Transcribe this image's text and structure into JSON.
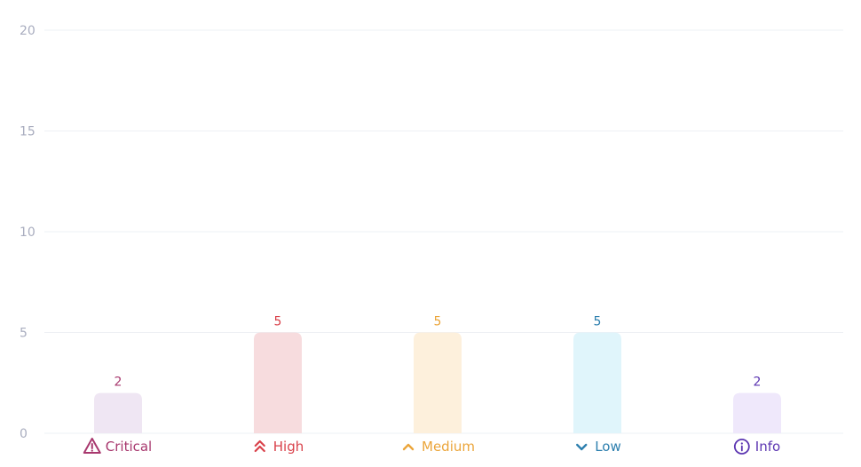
{
  "chart_data": {
    "type": "bar",
    "categories": [
      "Critical",
      "High",
      "Medium",
      "Low",
      "Info"
    ],
    "values": [
      2,
      5,
      5,
      5,
      2
    ],
    "category_icons": [
      "warning-triangle-icon",
      "double-chevron-up-icon",
      "chevron-up-icon",
      "chevron-down-icon",
      "info-circle-icon"
    ],
    "label_colors": [
      "#a8386e",
      "#d9414a",
      "#eba53a",
      "#2d7fae",
      "#5b35b1"
    ],
    "bar_colors": [
      "#efe6f3",
      "#f7dcde",
      "#fdf0dc",
      "#e0f5fb",
      "#efe8fb"
    ],
    "yticks": [
      "0",
      "5",
      "10",
      "15",
      "20"
    ],
    "ylim": [
      0,
      20
    ],
    "grid": true,
    "title": "",
    "xlabel": "",
    "ylabel": ""
  }
}
